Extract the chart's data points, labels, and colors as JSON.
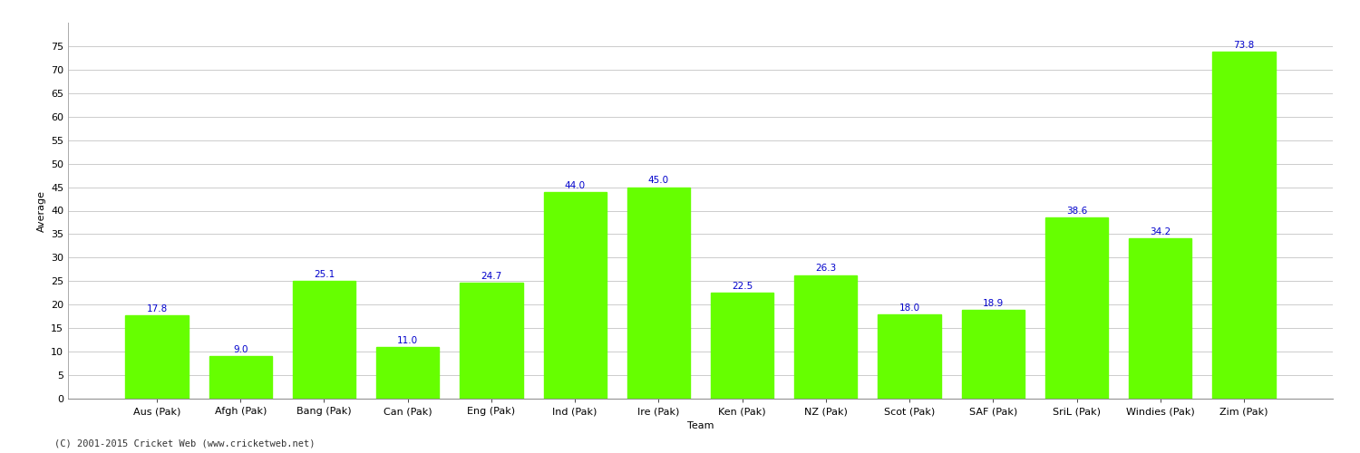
{
  "categories": [
    "Aus (Pak)",
    "Afgh (Pak)",
    "Bang (Pak)",
    "Can (Pak)",
    "Eng (Pak)",
    "Ind (Pak)",
    "Ire (Pak)",
    "Ken (Pak)",
    "NZ (Pak)",
    "Scot (Pak)",
    "SAF (Pak)",
    "SriL (Pak)",
    "Windies (Pak)",
    "Zim (Pak)"
  ],
  "values": [
    17.8,
    9.0,
    25.1,
    11.0,
    24.7,
    44.0,
    45.0,
    22.5,
    26.3,
    18.0,
    18.9,
    38.6,
    34.2,
    73.8
  ],
  "bar_color": "#66ff00",
  "label_color": "#0000cc",
  "xlabel": "Team",
  "ylabel": "Average",
  "ylim": [
    0,
    80
  ],
  "yticks": [
    0,
    5,
    10,
    15,
    20,
    25,
    30,
    35,
    40,
    45,
    50,
    55,
    60,
    65,
    70,
    75
  ],
  "background_color": "#ffffff",
  "grid_color": "#cccccc",
  "footer": "(C) 2001-2015 Cricket Web (www.cricketweb.net)",
  "label_fontsize": 7.5,
  "axis_fontsize": 8,
  "xlabel_fontsize": 8,
  "ylabel_fontsize": 8
}
